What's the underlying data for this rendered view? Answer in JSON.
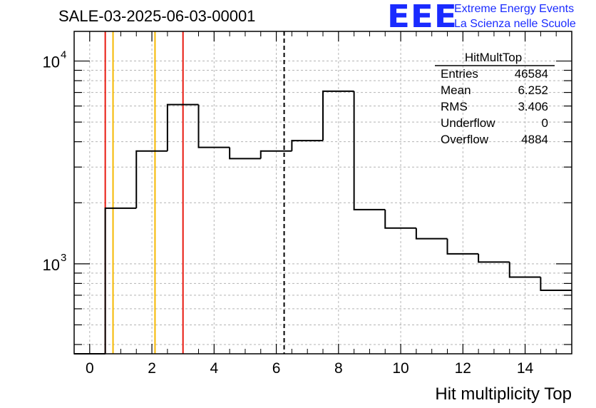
{
  "header": {
    "run_title": "SALE-03-2025-06-03-00001",
    "logo": {
      "mark": "EEE",
      "line1": "Extreme Energy Events",
      "line2": "La Scienza nelle Scuole"
    }
  },
  "stats_box": {
    "title": "HitMultTop",
    "rows": [
      {
        "label": "Entries",
        "value": "46584"
      },
      {
        "label": "Mean",
        "value": "6.252"
      },
      {
        "label": "RMS",
        "value": "3.406"
      },
      {
        "label": "Underflow",
        "value": "0"
      },
      {
        "label": "Overflow",
        "value": "4884"
      }
    ]
  },
  "chart_data": {
    "type": "histogram",
    "xlabel": "Hit multiplicity Top",
    "ylabel": "",
    "xlim": [
      -0.5,
      15.5
    ],
    "ylim": [
      360,
      14000
    ],
    "ylog": true,
    "grid": true,
    "bin_width": 1,
    "bins": [
      {
        "center": 0,
        "count": 0
      },
      {
        "center": 1,
        "count": 1880
      },
      {
        "center": 2,
        "count": 3600
      },
      {
        "center": 3,
        "count": 6100
      },
      {
        "center": 4,
        "count": 3750
      },
      {
        "center": 5,
        "count": 3300
      },
      {
        "center": 6,
        "count": 3600
      },
      {
        "center": 7,
        "count": 4050
      },
      {
        "center": 8,
        "count": 7100
      },
      {
        "center": 9,
        "count": 1850
      },
      {
        "center": 10,
        "count": 1500
      },
      {
        "center": 11,
        "count": 1330
      },
      {
        "center": 12,
        "count": 1120
      },
      {
        "center": 13,
        "count": 1020
      },
      {
        "center": 14,
        "count": 860
      },
      {
        "center": 15,
        "count": 740
      }
    ],
    "x_ticks": [
      0,
      2,
      4,
      6,
      8,
      10,
      12,
      14
    ],
    "y_major_labels": [
      {
        "value": 1000,
        "base": "10",
        "exp": "3"
      },
      {
        "value": 10000,
        "base": "10",
        "exp": "4"
      }
    ],
    "vertical_lines": [
      {
        "x": 0.5,
        "color": "#e8190f",
        "style": "solid"
      },
      {
        "x": 0.75,
        "color": "#f5b800",
        "style": "solid"
      },
      {
        "x": 2.1,
        "color": "#f5b800",
        "style": "solid"
      },
      {
        "x": 3.0,
        "color": "#e8190f",
        "style": "solid"
      },
      {
        "x": 6.252,
        "color": "#000000",
        "style": "dashed"
      }
    ],
    "colors": {
      "line": "#000000",
      "grid": "#b4b4b4",
      "axis": "#000000"
    }
  }
}
